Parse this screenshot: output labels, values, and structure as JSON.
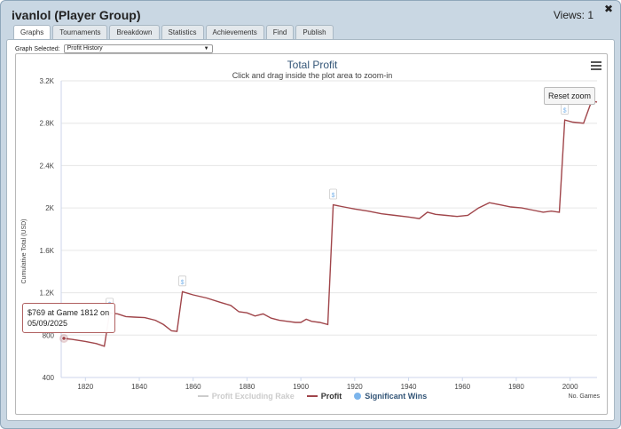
{
  "window": {
    "title": "ivanlol (Player Group)",
    "views_label": "Views: 1",
    "close_glyph": "✖"
  },
  "tabs": [
    {
      "label": "Graphs",
      "active": true
    },
    {
      "label": "Tournaments",
      "active": false
    },
    {
      "label": "Breakdown",
      "active": false
    },
    {
      "label": "Statistics",
      "active": false
    },
    {
      "label": "Achievements",
      "active": false
    },
    {
      "label": "Find",
      "active": false
    },
    {
      "label": "Publish",
      "active": false
    }
  ],
  "graph_select": {
    "label": "Graph Selected:",
    "value": "Profit History"
  },
  "chart": {
    "reset_label": "Reset zoom",
    "tooltip_line1": "$769 at Game 1812 on",
    "tooltip_line2": "05/09/2025",
    "legend": [
      {
        "label": "Profit Excluding Rake",
        "color": "#cccccc",
        "kind": "line",
        "hidden": true
      },
      {
        "label": "Profit",
        "color": "#a0454a",
        "kind": "line",
        "hidden": false
      },
      {
        "label": "Significant Wins",
        "color": "#7cb5ec",
        "kind": "dot",
        "hidden": false
      }
    ],
    "marker_label": "$",
    "colors": {
      "profit": "#a0454a",
      "grid": "#e6e6e6",
      "title": "#335577"
    }
  },
  "chart_data": {
    "type": "line",
    "title": "Total Profit",
    "subtitle": "Click and drag inside the plot area to zoom-in",
    "xlabel": "No. Games",
    "ylabel": "Cumulative Total (USD)",
    "xlim": [
      1811,
      2010
    ],
    "ylim": [
      400,
      3200
    ],
    "xticks": [
      1820,
      1840,
      1860,
      1880,
      1900,
      1920,
      1940,
      1960,
      1980,
      2000
    ],
    "yticks": [
      400,
      800,
      1200,
      1600,
      2000,
      2400,
      2800,
      3200
    ],
    "ytick_labels": [
      "400",
      "800",
      "1.2K",
      "1.6K",
      "2K",
      "2.4K",
      "2.8K",
      "3.2K"
    ],
    "series": [
      {
        "name": "Profit",
        "points": [
          [
            1812,
            769
          ],
          [
            1815,
            760
          ],
          [
            1820,
            740
          ],
          [
            1824,
            720
          ],
          [
            1827,
            695
          ],
          [
            1829,
            1010
          ],
          [
            1832,
            1000
          ],
          [
            1835,
            975
          ],
          [
            1838,
            970
          ],
          [
            1842,
            965
          ],
          [
            1846,
            940
          ],
          [
            1849,
            900
          ],
          [
            1852,
            840
          ],
          [
            1854,
            835
          ],
          [
            1856,
            1210
          ],
          [
            1860,
            1180
          ],
          [
            1865,
            1150
          ],
          [
            1870,
            1110
          ],
          [
            1874,
            1080
          ],
          [
            1877,
            1020
          ],
          [
            1880,
            1010
          ],
          [
            1883,
            980
          ],
          [
            1886,
            1000
          ],
          [
            1889,
            960
          ],
          [
            1892,
            940
          ],
          [
            1895,
            930
          ],
          [
            1898,
            920
          ],
          [
            1900,
            920
          ],
          [
            1902,
            950
          ],
          [
            1904,
            930
          ],
          [
            1907,
            920
          ],
          [
            1910,
            900
          ],
          [
            1912,
            2030
          ],
          [
            1916,
            2010
          ],
          [
            1920,
            1990
          ],
          [
            1925,
            1970
          ],
          [
            1930,
            1945
          ],
          [
            1935,
            1930
          ],
          [
            1940,
            1915
          ],
          [
            1944,
            1900
          ],
          [
            1947,
            1960
          ],
          [
            1950,
            1940
          ],
          [
            1954,
            1930
          ],
          [
            1958,
            1920
          ],
          [
            1962,
            1930
          ],
          [
            1966,
            2000
          ],
          [
            1970,
            2050
          ],
          [
            1974,
            2030
          ],
          [
            1978,
            2010
          ],
          [
            1982,
            2000
          ],
          [
            1986,
            1980
          ],
          [
            1990,
            1960
          ],
          [
            1993,
            1970
          ],
          [
            1996,
            1960
          ],
          [
            1998,
            2830
          ],
          [
            2001,
            2810
          ],
          [
            2005,
            2800
          ],
          [
            2008,
            3010
          ],
          [
            2010,
            3000
          ]
        ]
      }
    ],
    "significant_wins": [
      {
        "x": 1829,
        "y": 1030
      },
      {
        "x": 1856,
        "y": 1240
      },
      {
        "x": 1912,
        "y": 2060
      },
      {
        "x": 1998,
        "y": 2860
      }
    ],
    "highlight": {
      "x": 1812,
      "y": 769
    }
  }
}
